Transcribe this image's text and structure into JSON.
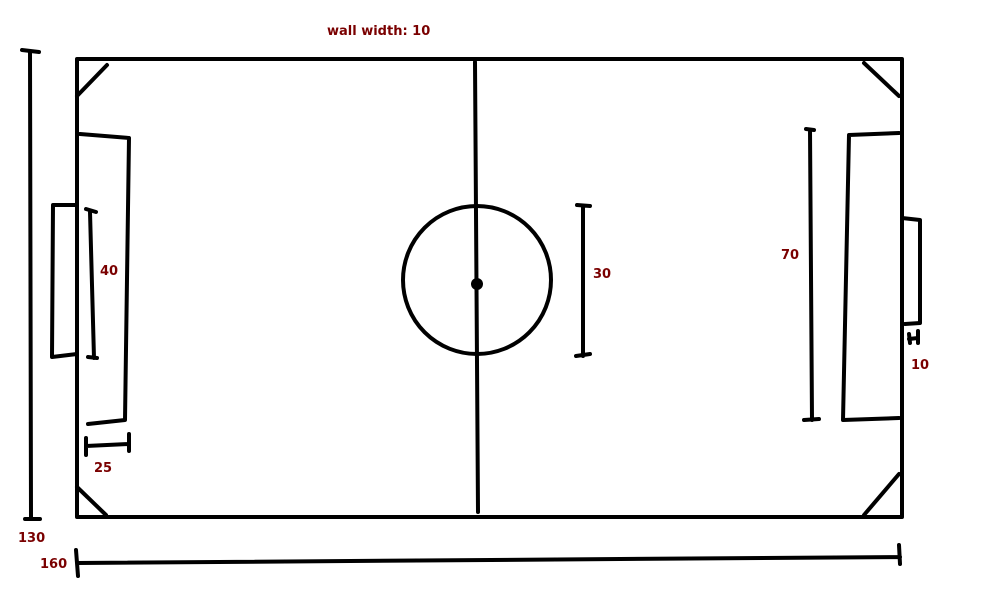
{
  "diagram": {
    "title": "wall width: 10",
    "colors": {
      "line": "#000000",
      "label": "#7a0000",
      "background": "#ffffff"
    },
    "dimensions": {
      "field_length": "160",
      "field_width": "130",
      "center_circle_diameter": "30",
      "goal_width": "40",
      "goal_depth_left": "25",
      "penalty_area_width": "70",
      "goal_depth_right": "10"
    }
  }
}
